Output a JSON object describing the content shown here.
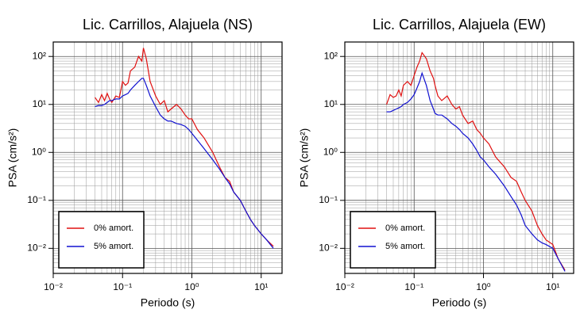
{
  "chart_data": [
    {
      "type": "line",
      "title": "Lic. Carrillos, Alajuela (NS)",
      "x_label": "Periodo (s)",
      "y_label": "PSA (cm/s²)",
      "log_x": true,
      "log_y": true,
      "grid": true,
      "legend": "lower left",
      "xlim": [
        0.01,
        20
      ],
      "ylim": [
        0.003,
        200
      ],
      "xticks": [
        {
          "value": 0.01,
          "label": "10⁻²"
        },
        {
          "value": 0.1,
          "label": "10⁻¹"
        },
        {
          "value": 1,
          "label": "10⁰"
        },
        {
          "value": 10,
          "label": "10¹"
        }
      ],
      "yticks": [
        {
          "value": 0.01,
          "label": "10⁻²"
        },
        {
          "value": 0.1,
          "label": "10⁻¹"
        },
        {
          "value": 1,
          "label": "10⁰"
        },
        {
          "value": 10,
          "label": "10¹"
        },
        {
          "value": 100,
          "label": "10²"
        }
      ],
      "xminorticks": [
        0.02,
        0.03,
        0.04,
        0.05,
        0.06,
        0.07,
        0.08,
        0.09,
        0.2,
        0.3,
        0.4,
        0.5,
        0.6,
        0.7,
        0.8,
        0.9,
        2,
        3,
        4,
        5,
        6,
        7,
        8,
        9,
        20
      ],
      "yminorticks": [
        0.003,
        0.004,
        0.005,
        0.006,
        0.007,
        0.008,
        0.009,
        0.02,
        0.03,
        0.04,
        0.05,
        0.06,
        0.07,
        0.08,
        0.09,
        0.2,
        0.3,
        0.4,
        0.5,
        0.6,
        0.7,
        0.8,
        0.9,
        2,
        3,
        4,
        5,
        6,
        7,
        8,
        9,
        20,
        30,
        40,
        50,
        60,
        70,
        80,
        90,
        200
      ],
      "x": [
        0.04,
        0.045,
        0.05,
        0.055,
        0.06,
        0.065,
        0.07,
        0.08,
        0.09,
        0.1,
        0.11,
        0.12,
        0.13,
        0.15,
        0.17,
        0.19,
        0.2,
        0.22,
        0.25,
        0.3,
        0.35,
        0.4,
        0.45,
        0.5,
        0.6,
        0.7,
        0.8,
        0.9,
        1,
        1.2,
        1.5,
        2,
        2.5,
        3,
        3.5,
        4,
        5,
        6,
        7,
        8,
        10,
        12,
        15
      ],
      "series": [
        {
          "name": "0% amort.",
          "color": "#e01010",
          "values": [
            14,
            11,
            16,
            12,
            17,
            13,
            11,
            15,
            14,
            30,
            25,
            28,
            50,
            60,
            100,
            80,
            150,
            90,
            30,
            15,
            10,
            12,
            7,
            8,
            10,
            8,
            6,
            5,
            5,
            3,
            2,
            1,
            0.5,
            0.3,
            0.25,
            0.15,
            0.1,
            0.06,
            0.04,
            0.03,
            0.02,
            0.015,
            0.011
          ]
        },
        {
          "name": "5% amort.",
          "color": "#1010d0",
          "values": [
            9,
            9.5,
            9.5,
            10,
            11,
            12,
            12,
            13,
            13,
            15,
            16,
            17,
            20,
            25,
            30,
            35,
            35,
            25,
            15,
            9,
            6,
            5,
            4.5,
            4.5,
            4,
            3.8,
            3.5,
            3,
            2.5,
            1.8,
            1.2,
            0.7,
            0.45,
            0.3,
            0.22,
            0.15,
            0.1,
            0.06,
            0.04,
            0.03,
            0.02,
            0.015,
            0.01
          ]
        }
      ]
    },
    {
      "type": "line",
      "title": "Lic. Carrillos, Alajuela (EW)",
      "x_label": "Periodo (s)",
      "y_label": "PSA (cm/s²)",
      "log_x": true,
      "log_y": true,
      "grid": true,
      "legend": "lower left",
      "xlim": [
        0.01,
        20
      ],
      "ylim": [
        0.003,
        200
      ],
      "xticks": [
        {
          "value": 0.01,
          "label": "10⁻²"
        },
        {
          "value": 0.1,
          "label": "10⁻¹"
        },
        {
          "value": 1,
          "label": "10⁰"
        },
        {
          "value": 10,
          "label": "10¹"
        }
      ],
      "yticks": [
        {
          "value": 0.01,
          "label": "10⁻²"
        },
        {
          "value": 0.1,
          "label": "10⁻¹"
        },
        {
          "value": 1,
          "label": "10⁰"
        },
        {
          "value": 10,
          "label": "10¹"
        },
        {
          "value": 100,
          "label": "10²"
        }
      ],
      "xminorticks": [
        0.02,
        0.03,
        0.04,
        0.05,
        0.06,
        0.07,
        0.08,
        0.09,
        0.2,
        0.3,
        0.4,
        0.5,
        0.6,
        0.7,
        0.8,
        0.9,
        2,
        3,
        4,
        5,
        6,
        7,
        8,
        9,
        20
      ],
      "yminorticks": [
        0.003,
        0.004,
        0.005,
        0.006,
        0.007,
        0.008,
        0.009,
        0.02,
        0.03,
        0.04,
        0.05,
        0.06,
        0.07,
        0.08,
        0.09,
        0.2,
        0.3,
        0.4,
        0.5,
        0.6,
        0.7,
        0.8,
        0.9,
        2,
        3,
        4,
        5,
        6,
        7,
        8,
        9,
        20,
        30,
        40,
        50,
        60,
        70,
        80,
        90,
        200
      ],
      "x": [
        0.04,
        0.045,
        0.05,
        0.055,
        0.06,
        0.065,
        0.07,
        0.08,
        0.09,
        0.1,
        0.11,
        0.12,
        0.13,
        0.15,
        0.17,
        0.19,
        0.2,
        0.22,
        0.25,
        0.3,
        0.35,
        0.4,
        0.45,
        0.5,
        0.6,
        0.7,
        0.8,
        0.9,
        1,
        1.2,
        1.5,
        2,
        2.5,
        3,
        3.5,
        4,
        5,
        6,
        7,
        8,
        10,
        12,
        15
      ],
      "series": [
        {
          "name": "0% amort.",
          "color": "#e01010",
          "values": [
            10,
            16,
            14,
            15,
            20,
            15,
            25,
            30,
            25,
            40,
            60,
            80,
            120,
            90,
            50,
            35,
            25,
            15,
            12,
            15,
            10,
            8,
            9,
            6,
            4,
            4.5,
            3,
            2.5,
            2,
            1.5,
            0.8,
            0.5,
            0.3,
            0.25,
            0.15,
            0.1,
            0.06,
            0.03,
            0.02,
            0.015,
            0.012,
            0.006,
            0.0035
          ]
        },
        {
          "name": "5% amort.",
          "color": "#1010d0",
          "values": [
            7,
            7,
            7.5,
            8,
            8.5,
            9,
            10,
            11,
            13,
            16,
            22,
            30,
            45,
            25,
            12,
            8,
            6.5,
            6,
            6,
            5,
            4,
            3.5,
            3,
            2.5,
            2,
            1.5,
            1.1,
            0.8,
            0.7,
            0.5,
            0.35,
            0.2,
            0.12,
            0.08,
            0.05,
            0.03,
            0.02,
            0.015,
            0.013,
            0.012,
            0.01,
            0.006,
            0.0033
          ]
        }
      ]
    }
  ]
}
